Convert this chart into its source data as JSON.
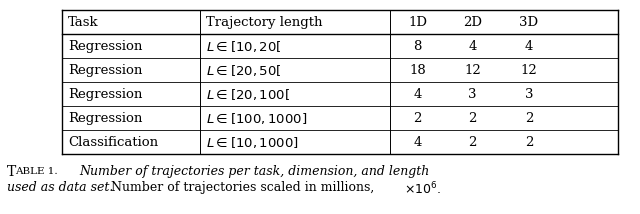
{
  "headers": [
    "Task",
    "Trajectory length",
    "1D",
    "2D",
    "3D"
  ],
  "rows": [
    [
      "Regression",
      "$L \\in [10, 20[$",
      "8",
      "4",
      "4"
    ],
    [
      "Regression",
      "$L \\in [20, 50[$",
      "18",
      "12",
      "12"
    ],
    [
      "Regression",
      "$L \\in [20, 100[$",
      "4",
      "3",
      "3"
    ],
    [
      "Regression",
      "$L \\in [100, 1000]$",
      "2",
      "2",
      "2"
    ],
    [
      "Classification",
      "$L \\in [10, 1000]$",
      "4",
      "2",
      "2"
    ]
  ],
  "font_size": 9.5,
  "background": "#ffffff",
  "table_caption_line1_a": "T",
  "table_caption_line1_b": "ABLE 1.",
  "table_caption_line1_italic": "  Number of trajectories per task, dimension, and length",
  "table_caption_line2_italic": "used as data set.",
  "table_caption_line2_normal": " Number of trajectories scaled in millions, ",
  "table_caption_line2_math": "$\\times 10^{6}.$"
}
